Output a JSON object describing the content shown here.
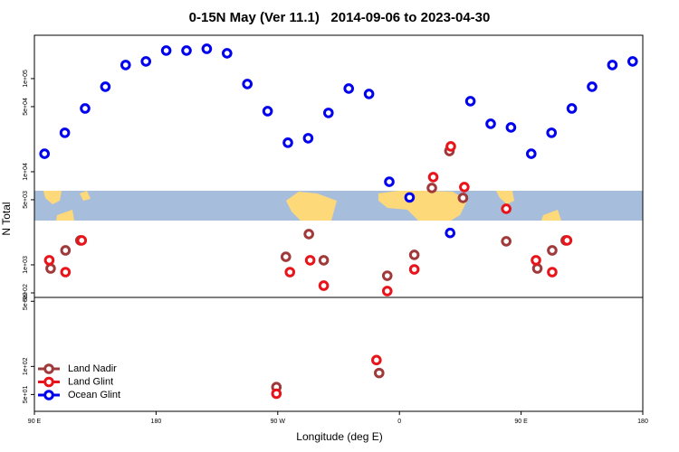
{
  "chart_data": [
    {
      "type": "scatter",
      "title": "0-15N May (Ver 11.1)   2014-09-06 to 2023-04-30",
      "ylabel": "N Total",
      "log_y": true,
      "xlim": [
        90,
        540
      ],
      "ylim": [
        447,
        292000
      ],
      "yticks": [
        {
          "value": 500,
          "label": "5e+02"
        },
        {
          "value": 1000,
          "label": "1e+03"
        },
        {
          "value": 5000,
          "label": "5e+03"
        },
        {
          "value": 10000,
          "label": "1e+04"
        },
        {
          "value": 50000,
          "label": "5e+04"
        },
        {
          "value": 100000,
          "label": "1e+05"
        }
      ],
      "series": [
        {
          "color": "#a0393a",
          "x": [
            102,
            113,
            124,
            276,
            293,
            304,
            351,
            371,
            384,
            397,
            407,
            439,
            462,
            473,
            483
          ],
          "values": [
            914,
            1430,
            1830,
            1220,
            2140,
            1120,
            764,
            1280,
            6690,
            16700,
            5230,
            1790,
            914,
            1430,
            1830
          ]
        },
        {
          "color": "#e8141a",
          "x": [
            101,
            113,
            125,
            279,
            294,
            304,
            351,
            371,
            385,
            398,
            408,
            439,
            461,
            473,
            484
          ],
          "values": [
            1120,
            836,
            1830,
            836,
            1120,
            598,
            523,
            894,
            8750,
            18700,
            6840,
            4000,
            1120,
            836,
            1830
          ]
        },
        {
          "color": "#0000ee",
          "x": [
            97.5,
            112.5,
            127.5,
            142.5,
            157.5,
            172.5,
            187.5,
            202.5,
            217.5,
            232.5,
            247.5,
            262.5,
            277.5,
            292.5,
            307.5,
            322.5,
            337.5,
            352.5,
            367.5,
            397.5,
            412.5,
            427.5,
            442.5,
            457.5,
            472.5,
            487.5,
            502.5,
            517.5,
            532.5
          ],
          "values": [
            15600,
            26200,
            47800,
            81800,
            140000,
            153000,
            200000,
            200000,
            209000,
            187000,
            87500,
            44700,
            20500,
            22900,
            42800,
            78200,
            68400,
            7800,
            5300,
            2200,
            57200,
            32700,
            29900,
            15600,
            26200,
            47800,
            81800,
            140000,
            153000
          ]
        }
      ]
    },
    {
      "type": "scatter",
      "xlabel": "Longitude (deg E)",
      "log_y": true,
      "xlim": [
        90,
        540
      ],
      "ylim": [
        33,
        550
      ],
      "xticks": [
        {
          "value": 90,
          "label": "90 E"
        },
        180,
        {
          "value": 270,
          "label": "90 W"
        },
        {
          "value": 360,
          "label": "0"
        },
        {
          "value": 450,
          "label": "90 E"
        },
        {
          "value": 540,
          "label": "180"
        }
      ],
      "yticks": [
        {
          "value": 50,
          "label": "5e+01"
        },
        {
          "value": 100,
          "label": "1e+02"
        },
        {
          "value": 500,
          "label": "5e+02"
        }
      ],
      "legend": "lower left",
      "series": [
        {
          "name": "Land Nadir",
          "color": "#a0393a",
          "x": [
            269,
            345
          ],
          "values": [
            60,
            85
          ]
        },
        {
          "name": "Land Glint",
          "color": "#e8141a",
          "x": [
            269,
            343
          ],
          "values": [
            51,
            117
          ]
        },
        {
          "name": "Ocean Glint",
          "color": "#0000ee",
          "x": [],
          "values": []
        }
      ]
    }
  ]
}
